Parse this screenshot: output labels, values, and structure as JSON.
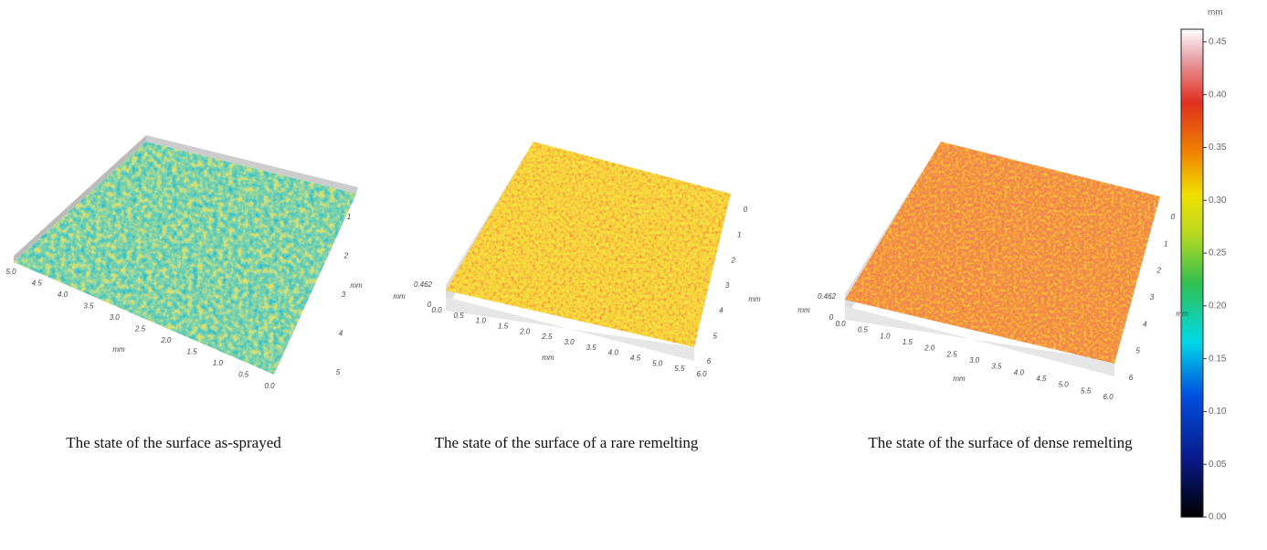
{
  "panels": [
    {
      "caption": "The state of the surface as-sprayed",
      "x_axis": {
        "title": "mm",
        "ticks": [
          "5.0",
          "4.5",
          "4.0",
          "3.5",
          "3.0",
          "2.5",
          "2.0",
          "1.5",
          "1.0",
          "0.5",
          "0.0"
        ]
      },
      "y_axis": {
        "title": "mm",
        "ticks": [
          "1",
          "2",
          "3",
          "4",
          "5"
        ]
      }
    },
    {
      "caption": "The state of the surface of a rare remelting",
      "z_axis": {
        "title": "mm",
        "ticks": [
          "0.462",
          "0"
        ]
      },
      "x_axis": {
        "title": "mm",
        "ticks": [
          "0.0",
          "0.5",
          "1.0",
          "1.5",
          "2.0",
          "2.5",
          "3.0",
          "3.5",
          "4.0",
          "4.5",
          "5.0",
          "5.5",
          "6.0"
        ]
      },
      "y_axis": {
        "title": "mm",
        "ticks": [
          "0",
          "1",
          "2",
          "3",
          "4",
          "5",
          "6"
        ]
      }
    },
    {
      "caption": "The state of the surface of dense remelting",
      "z_axis": {
        "title": "mm",
        "ticks": [
          "0.462",
          "0"
        ]
      },
      "x_axis": {
        "title": "mm",
        "ticks": [
          "0.0",
          "0.5",
          "1.0",
          "1.5",
          "2.0",
          "2.5",
          "3.0",
          "3.5",
          "4.0",
          "4.5",
          "5.0",
          "5.5",
          "6.0"
        ]
      },
      "y_axis": {
        "title": "mm",
        "ticks": [
          "0",
          "1",
          "2",
          "3",
          "4",
          "5",
          "6"
        ]
      }
    }
  ],
  "colorbar": {
    "unit": "mm",
    "lim": [
      0,
      0.462
    ],
    "ticks": [
      {
        "value": 0,
        "label": "0.00"
      },
      {
        "value": 0.05,
        "label": "0.05"
      },
      {
        "value": 0.1,
        "label": "0.10"
      },
      {
        "value": 0.15,
        "label": "0.15"
      },
      {
        "value": 0.2,
        "label": "0.20"
      },
      {
        "value": 0.25,
        "label": "0.25"
      },
      {
        "value": 0.3,
        "label": "0.30"
      },
      {
        "value": 0.35,
        "label": "0.35"
      },
      {
        "value": 0.4,
        "label": "0.40"
      },
      {
        "value": 0.45,
        "label": "0.45"
      }
    ]
  }
}
